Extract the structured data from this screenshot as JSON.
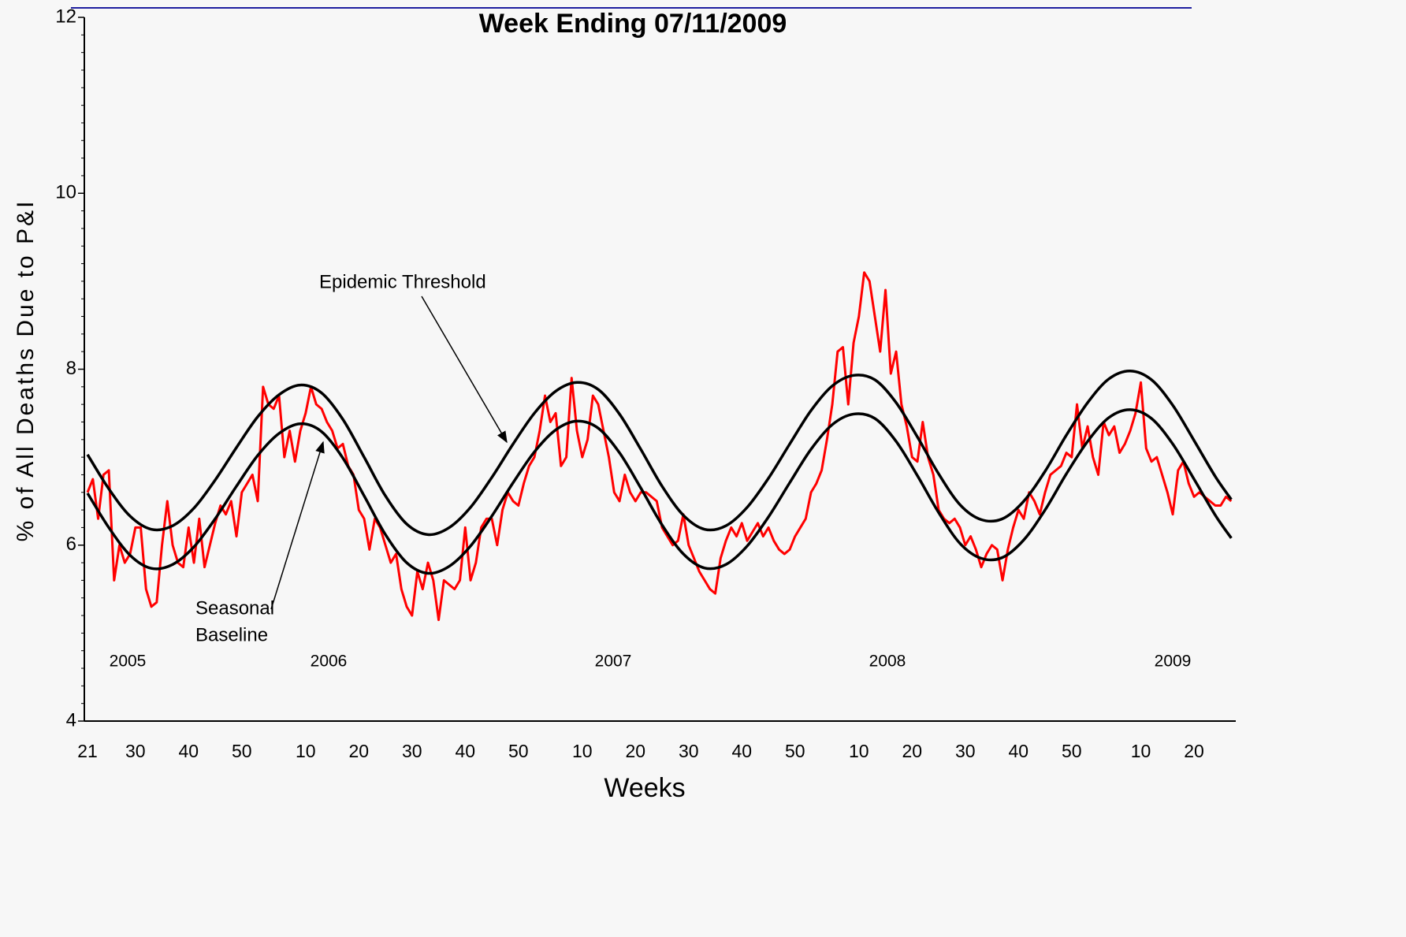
{
  "chart_data": {
    "type": "line",
    "title": "Week Ending 07/11/2009",
    "x_label": "Weeks",
    "y_label": "% of All Deaths Due to P&I",
    "year_labels": [
      "2005",
      "2006",
      "2007",
      "2008",
      "2009"
    ],
    "annotations": [
      "Epidemic Threshold",
      "Seasonal",
      "Baseline"
    ],
    "xlim": [
      -0.6,
      215.4
    ],
    "ylim": [
      4,
      12
    ],
    "yticks": [
      4,
      6,
      8,
      10,
      12
    ],
    "xticks": [
      {
        "value": 0,
        "label": "21"
      },
      {
        "value": 9,
        "label": "30"
      },
      {
        "value": 19,
        "label": "40"
      },
      {
        "value": 29,
        "label": "50"
      },
      {
        "value": 41,
        "label": "10"
      },
      {
        "value": 51,
        "label": "20"
      },
      {
        "value": 61,
        "label": "30"
      },
      {
        "value": 71,
        "label": "40"
      },
      {
        "value": 81,
        "label": "50"
      },
      {
        "value": 93,
        "label": "10"
      },
      {
        "value": 103,
        "label": "20"
      },
      {
        "value": 113,
        "label": "30"
      },
      {
        "value": 123,
        "label": "40"
      },
      {
        "value": 133,
        "label": "50"
      },
      {
        "value": 145,
        "label": "10"
      },
      {
        "value": 155,
        "label": "20"
      },
      {
        "value": 165,
        "label": "30"
      },
      {
        "value": 175,
        "label": "40"
      },
      {
        "value": 185,
        "label": "50"
      },
      {
        "value": 198,
        "label": "10"
      },
      {
        "value": 208,
        "label": "20"
      }
    ],
    "series": [
      {
        "color": "#ff0000",
        "smooth": false,
        "x": [
          0,
          1,
          2,
          3,
          4,
          5,
          6,
          7,
          8,
          9,
          10,
          11,
          12,
          13,
          14,
          15,
          16,
          17,
          18,
          19,
          20,
          21,
          22,
          23,
          24,
          25,
          26,
          27,
          28,
          29,
          30,
          31,
          32,
          33,
          34,
          35,
          36,
          37,
          38,
          39,
          40,
          41,
          42,
          43,
          44,
          45,
          46,
          47,
          48,
          49,
          50,
          51,
          52,
          53,
          54,
          55,
          56,
          57,
          58,
          59,
          60,
          61,
          62,
          63,
          64,
          65,
          66,
          67,
          68,
          69,
          70,
          71,
          72,
          73,
          74,
          75,
          76,
          77,
          78,
          79,
          80,
          81,
          82,
          83,
          84,
          85,
          86,
          87,
          88,
          89,
          90,
          91,
          92,
          93,
          94,
          95,
          96,
          97,
          98,
          99,
          100,
          101,
          102,
          103,
          104,
          105,
          106,
          107,
          108,
          109,
          110,
          111,
          112,
          113,
          114,
          115,
          116,
          117,
          118,
          119,
          120,
          121,
          122,
          123,
          124,
          125,
          126,
          127,
          128,
          129,
          130,
          131,
          132,
          133,
          134,
          135,
          136,
          137,
          138,
          139,
          140,
          141,
          142,
          143,
          144,
          145,
          146,
          147,
          148,
          149,
          150,
          151,
          152,
          153,
          154,
          155,
          156,
          157,
          158,
          159,
          160,
          161,
          162,
          163,
          164,
          165,
          166,
          167,
          168,
          169,
          170,
          171,
          172,
          173,
          174,
          175,
          176,
          177,
          178,
          179,
          180,
          181,
          182,
          183,
          184,
          185,
          186,
          187,
          188,
          189,
          190,
          191,
          192,
          193,
          194,
          195,
          196,
          197,
          198,
          199,
          200,
          201,
          202,
          203,
          204,
          205,
          206,
          207,
          208,
          209,
          210,
          211,
          212,
          213,
          214,
          215
        ],
        "values": [
          6.6,
          6.75,
          6.3,
          6.8,
          6.85,
          5.6,
          6.0,
          5.8,
          5.9,
          6.2,
          6.2,
          5.5,
          5.3,
          5.35,
          6.0,
          6.5,
          6.0,
          5.8,
          5.75,
          6.2,
          5.8,
          6.3,
          5.75,
          6.0,
          6.25,
          6.45,
          6.35,
          6.5,
          6.1,
          6.6,
          6.7,
          6.8,
          6.5,
          7.8,
          7.6,
          7.55,
          7.7,
          7.0,
          7.3,
          6.95,
          7.3,
          7.5,
          7.8,
          7.6,
          7.55,
          7.4,
          7.3,
          7.1,
          7.15,
          6.9,
          6.8,
          6.4,
          6.3,
          5.95,
          6.3,
          6.2,
          6.0,
          5.8,
          5.9,
          5.5,
          5.3,
          5.2,
          5.7,
          5.5,
          5.8,
          5.6,
          5.15,
          5.6,
          5.55,
          5.5,
          5.6,
          6.2,
          5.6,
          5.8,
          6.2,
          6.3,
          6.3,
          6.0,
          6.4,
          6.6,
          6.5,
          6.45,
          6.7,
          6.9,
          7.0,
          7.3,
          7.7,
          7.4,
          7.5,
          6.9,
          7.0,
          7.9,
          7.3,
          7.0,
          7.2,
          7.7,
          7.6,
          7.3,
          7.0,
          6.6,
          6.5,
          6.8,
          6.6,
          6.5,
          6.6,
          6.6,
          6.55,
          6.5,
          6.2,
          6.1,
          6.0,
          6.05,
          6.35,
          6.0,
          5.85,
          5.7,
          5.6,
          5.5,
          5.45,
          5.85,
          6.05,
          6.2,
          6.1,
          6.25,
          6.05,
          6.15,
          6.25,
          6.1,
          6.2,
          6.05,
          5.95,
          5.9,
          5.95,
          6.1,
          6.2,
          6.3,
          6.6,
          6.7,
          6.85,
          7.2,
          7.6,
          8.2,
          8.25,
          7.6,
          8.3,
          8.6,
          9.1,
          9.0,
          8.6,
          8.2,
          8.9,
          7.95,
          8.2,
          7.6,
          7.35,
          7.0,
          6.95,
          7.4,
          7.0,
          6.8,
          6.4,
          6.3,
          6.25,
          6.3,
          6.2,
          6.0,
          6.1,
          5.95,
          5.75,
          5.9,
          6.0,
          5.95,
          5.6,
          5.95,
          6.2,
          6.4,
          6.3,
          6.6,
          6.5,
          6.35,
          6.6,
          6.8,
          6.85,
          6.9,
          7.05,
          7.0,
          7.6,
          7.1,
          7.35,
          7.0,
          6.8,
          7.4,
          7.25,
          7.35,
          7.05,
          7.15,
          7.3,
          7.5,
          7.85,
          7.1,
          6.95,
          7.0,
          6.8,
          6.6,
          6.35,
          6.85,
          6.95,
          6.7,
          6.55,
          6.6,
          6.55,
          6.5,
          6.45,
          6.45,
          6.55,
          6.5
        ]
      },
      {
        "color": "#000000",
        "smooth": true,
        "x": [
          0,
          4,
          8,
          12,
          16,
          20,
          24,
          28,
          32,
          36,
          40,
          44,
          48,
          52,
          56,
          60,
          64,
          68,
          72,
          76,
          80,
          84,
          88,
          92,
          96,
          100,
          104,
          108,
          112,
          116,
          120,
          124,
          128,
          132,
          136,
          140,
          144,
          148,
          152,
          156,
          160,
          164,
          168,
          172,
          176,
          180,
          184,
          188,
          192,
          196,
          200,
          204,
          208,
          212,
          215
        ],
        "values": [
          7.03,
          6.64,
          6.33,
          6.18,
          6.22,
          6.42,
          6.74,
          7.11,
          7.46,
          7.71,
          7.82,
          7.73,
          7.43,
          7.0,
          6.56,
          6.24,
          6.12,
          6.2,
          6.43,
          6.77,
          7.15,
          7.5,
          7.75,
          7.85,
          7.77,
          7.49,
          7.09,
          6.67,
          6.34,
          6.18,
          6.22,
          6.43,
          6.76,
          7.15,
          7.53,
          7.81,
          7.93,
          7.88,
          7.62,
          7.23,
          6.81,
          6.46,
          6.29,
          6.3,
          6.5,
          6.84,
          7.25,
          7.62,
          7.89,
          7.98,
          7.88,
          7.59,
          7.19,
          6.78,
          6.52
        ]
      },
      {
        "color": "#000000",
        "smooth": true,
        "x": [
          0,
          4,
          8,
          12,
          16,
          20,
          24,
          28,
          32,
          36,
          40,
          44,
          48,
          52,
          56,
          60,
          64,
          68,
          72,
          76,
          80,
          84,
          88,
          92,
          96,
          100,
          104,
          108,
          112,
          116,
          120,
          124,
          128,
          132,
          136,
          140,
          144,
          148,
          152,
          156,
          160,
          164,
          168,
          172,
          176,
          180,
          184,
          188,
          192,
          196,
          200,
          204,
          208,
          212,
          215
        ],
        "values": [
          6.59,
          6.2,
          5.885,
          5.736,
          5.78,
          5.98,
          6.3,
          6.67,
          7.02,
          7.27,
          7.38,
          7.29,
          6.99,
          6.56,
          6.12,
          5.8,
          5.68,
          5.76,
          5.99,
          6.33,
          6.71,
          7.06,
          7.31,
          7.41,
          7.33,
          7.05,
          6.65,
          6.23,
          5.9,
          5.74,
          5.78,
          5.99,
          6.32,
          6.71,
          7.09,
          7.37,
          7.49,
          7.44,
          7.18,
          6.79,
          6.37,
          6.02,
          5.85,
          5.86,
          6.06,
          6.4,
          6.81,
          7.18,
          7.45,
          7.54,
          7.44,
          7.15,
          6.75,
          6.34,
          6.08
        ]
      }
    ]
  }
}
